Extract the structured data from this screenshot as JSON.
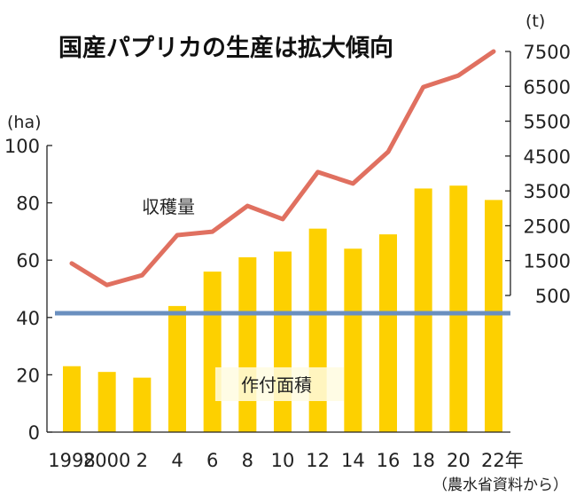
{
  "chart_data": {
    "type": "bar+line",
    "title": "国産パプリカの生産は拡大傾向",
    "source": "（農水省資料から）",
    "categories": [
      "1998",
      "2000",
      "2",
      "4",
      "6",
      "8",
      "10",
      "12",
      "14",
      "16",
      "18",
      "20",
      "22年"
    ],
    "years": [
      1998,
      2000,
      2002,
      2004,
      2006,
      2008,
      2010,
      2012,
      2014,
      2016,
      2018,
      2020,
      2022
    ],
    "left_axis": {
      "unit": "(ha)",
      "ylim": [
        0,
        100
      ],
      "ticks": [
        0,
        20,
        40,
        60,
        80,
        100
      ]
    },
    "right_axis": {
      "unit": "(t)",
      "ylim": [
        500,
        7500
      ],
      "ticks": [
        500,
        1500,
        2500,
        3500,
        4500,
        5500,
        6500,
        7500
      ]
    },
    "series": [
      {
        "name": "作付面積",
        "type": "bar",
        "axis": "left",
        "color": "#FDD000",
        "values": [
          23,
          21,
          19,
          44,
          56,
          61,
          63,
          71,
          64,
          69,
          85,
          86,
          81
        ]
      },
      {
        "name": "収穫量",
        "type": "line",
        "axis": "right",
        "color": "#E07060",
        "values": [
          1420,
          800,
          1080,
          2230,
          2330,
          3070,
          2690,
          4040,
          3710,
          4620,
          6480,
          6810,
          7500
        ]
      }
    ],
    "reference_line": {
      "axis": "left",
      "value": 41.5,
      "color": "#6A8FBF"
    },
    "grid": false,
    "legend": "inline labels"
  }
}
